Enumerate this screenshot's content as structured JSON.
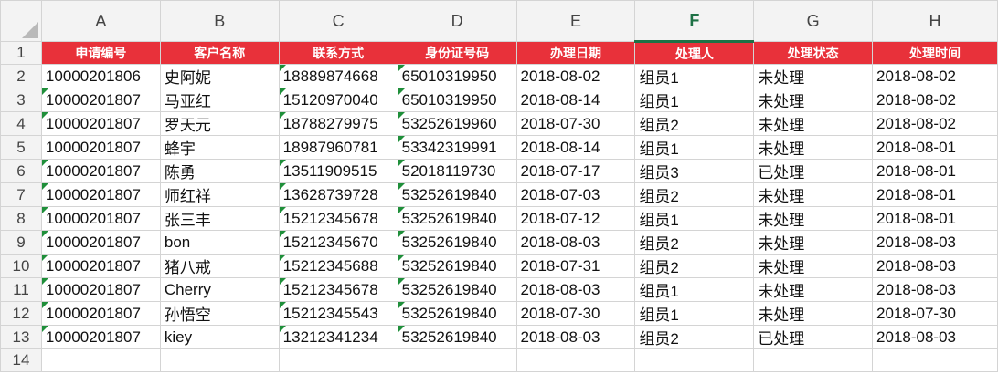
{
  "columns": [
    "A",
    "B",
    "C",
    "D",
    "E",
    "F",
    "G",
    "H"
  ],
  "active_column": "F",
  "headers": [
    "申请编号",
    "客户名称",
    "联系方式",
    "身份证号码",
    "办理日期",
    "处理人",
    "处理状态",
    "处理时间"
  ],
  "rows": [
    {
      "n": "2",
      "cells": [
        "10000201806",
        "史阿妮",
        "18889874668",
        "65010319950",
        "2018-08-02",
        "组员1",
        "未处理",
        "2018-08-02"
      ],
      "marks": [
        false,
        false,
        true,
        true
      ]
    },
    {
      "n": "3",
      "cells": [
        "10000201807",
        "马亚红",
        "15120970040",
        "65010319950",
        "2018-08-14",
        "组员1",
        "未处理",
        "2018-08-02"
      ],
      "marks": [
        true,
        false,
        true,
        true
      ]
    },
    {
      "n": "4",
      "cells": [
        "10000201807",
        "罗天元",
        "18788279975",
        "53252619960",
        "2018-07-30",
        "组员2",
        "未处理",
        "2018-08-02"
      ],
      "marks": [
        true,
        false,
        true,
        true
      ]
    },
    {
      "n": "5",
      "cells": [
        "10000201807",
        "蜂宇",
        "18987960781",
        "53342319991",
        "2018-08-14",
        "组员1",
        "未处理",
        "2018-08-01"
      ],
      "marks": [
        false,
        false,
        false,
        true
      ]
    },
    {
      "n": "6",
      "cells": [
        "10000201807",
        "陈勇",
        "13511909515",
        "52018119730",
        "2018-07-17",
        "组员3",
        "已处理",
        "2018-08-01"
      ],
      "marks": [
        true,
        false,
        true,
        true
      ]
    },
    {
      "n": "7",
      "cells": [
        "10000201807",
        "师红祥",
        "13628739728",
        "53252619840",
        "2018-07-03",
        "组员2",
        "未处理",
        "2018-08-01"
      ],
      "marks": [
        true,
        false,
        true,
        true
      ]
    },
    {
      "n": "8",
      "cells": [
        "10000201807",
        "张三丰",
        "15212345678",
        "53252619840",
        "2018-07-12",
        "组员1",
        "未处理",
        "2018-08-01"
      ],
      "marks": [
        true,
        false,
        true,
        true
      ]
    },
    {
      "n": "9",
      "cells": [
        "10000201807",
        "bon",
        "15212345670",
        "53252619840",
        "2018-08-03",
        "组员2",
        "未处理",
        "2018-08-03"
      ],
      "marks": [
        true,
        false,
        true,
        true
      ]
    },
    {
      "n": "10",
      "cells": [
        "10000201807",
        "猪八戒",
        "15212345688",
        "53252619840",
        "2018-07-31",
        "组员2",
        "未处理",
        "2018-08-03"
      ],
      "marks": [
        true,
        false,
        true,
        true
      ]
    },
    {
      "n": "11",
      "cells": [
        "10000201807",
        "Cherry",
        "15212345678",
        "53252619840",
        "2018-08-03",
        "组员1",
        "未处理",
        "2018-08-03"
      ],
      "marks": [
        true,
        false,
        true,
        true
      ]
    },
    {
      "n": "12",
      "cells": [
        "10000201807",
        "孙悟空",
        "15212345543",
        "53252619840",
        "2018-07-30",
        "组员1",
        "未处理",
        "2018-07-30"
      ],
      "marks": [
        true,
        false,
        true,
        true
      ]
    },
    {
      "n": "13",
      "cells": [
        "10000201807",
        "kiey",
        "13212341234",
        "53252619840",
        "2018-08-03",
        "组员2",
        "已处理",
        "2018-08-03"
      ],
      "marks": [
        true,
        false,
        true,
        true
      ]
    }
  ],
  "row_numbers": {
    "header": "1",
    "empty": "14"
  },
  "colors": {
    "header_bg": "#e8313a",
    "mark": "#1f8f3a",
    "active_col": "#1e7145"
  }
}
